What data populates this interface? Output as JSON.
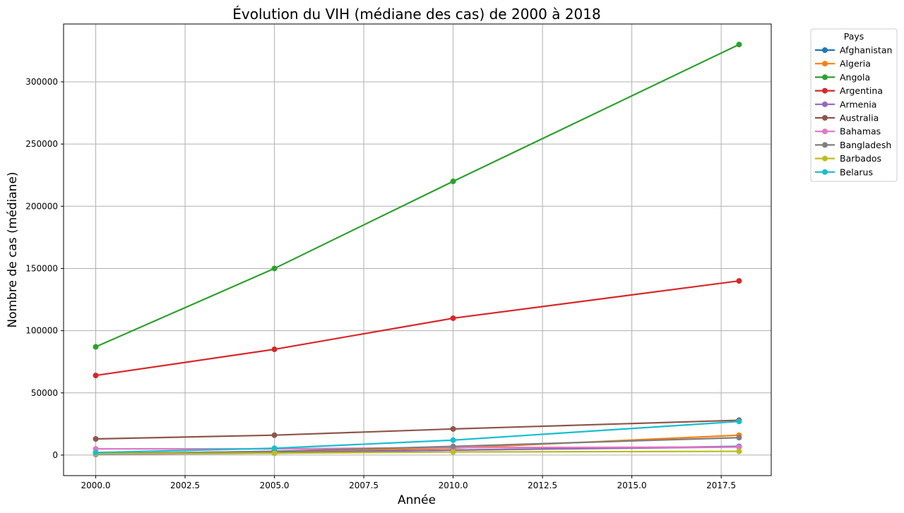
{
  "chart_data": {
    "type": "line",
    "title": "Évolution du VIH (médiane des cas) de 2000 à 2018",
    "xlabel": "Année",
    "ylabel": "Nombre de cas (médiane)",
    "x": [
      2000,
      2005,
      2010,
      2018
    ],
    "xlim": [
      1999.1,
      2018.9
    ],
    "ylim": [
      -16500,
      346500
    ],
    "xticks": [
      2000.0,
      2002.5,
      2005.0,
      2007.5,
      2010.0,
      2012.5,
      2015.0,
      2017.5
    ],
    "xtick_labels": [
      "2000.0",
      "2002.5",
      "2005.0",
      "2007.5",
      "2010.0",
      "2012.5",
      "2015.0",
      "2017.5"
    ],
    "yticks": [
      0,
      50000,
      100000,
      150000,
      200000,
      250000,
      300000
    ],
    "ytick_labels": [
      "0",
      "50000",
      "100000",
      "150000",
      "200000",
      "250000",
      "300000"
    ],
    "grid": true,
    "legend": {
      "title": "Pays",
      "placement": "outside-upper-right"
    },
    "series": [
      {
        "name": "Afghanistan",
        "color": "#1f77b4",
        "values": [
          1000,
          2500,
          4000,
          7000
        ]
      },
      {
        "name": "Algeria",
        "color": "#ff7f0e",
        "values": [
          1000,
          3000,
          5500,
          16000
        ]
      },
      {
        "name": "Angola",
        "color": "#2ca02c",
        "values": [
          87000,
          150000,
          220000,
          330000
        ]
      },
      {
        "name": "Argentina",
        "color": "#d62728",
        "values": [
          64000,
          85000,
          110000,
          140000
        ]
      },
      {
        "name": "Armenia",
        "color": "#9467bd",
        "values": [
          500,
          1500,
          4000,
          6500
        ]
      },
      {
        "name": "Australia",
        "color": "#8c564b",
        "values": [
          13000,
          16000,
          21000,
          28000
        ]
      },
      {
        "name": "Bahamas",
        "color": "#e377c2",
        "values": [
          5000,
          5000,
          6000,
          6500
        ]
      },
      {
        "name": "Bangladesh",
        "color": "#7f7f7f",
        "values": [
          1000,
          3000,
          7000,
          14000
        ]
      },
      {
        "name": "Barbados",
        "color": "#bcbd22",
        "values": [
          1000,
          1500,
          2500,
          3000
        ]
      },
      {
        "name": "Belarus",
        "color": "#17becf",
        "values": [
          2000,
          5500,
          12000,
          27000
        ]
      }
    ]
  }
}
